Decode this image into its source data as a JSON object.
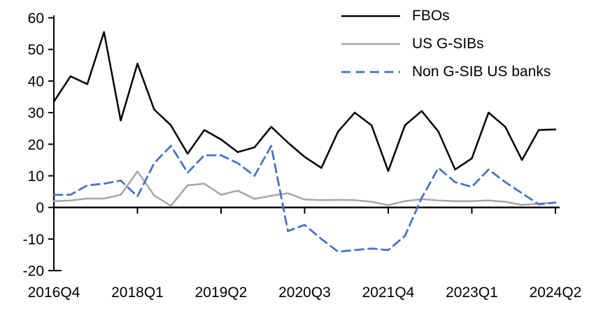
{
  "chart_data": {
    "type": "line",
    "title": "",
    "xlabel": "",
    "ylabel": "",
    "ylim": [
      -20,
      60
    ],
    "grid": false,
    "legend_position": "top-right",
    "x_categories": [
      "2016Q4",
      "2017Q1",
      "2017Q2",
      "2017Q3",
      "2017Q4",
      "2018Q1",
      "2018Q2",
      "2018Q3",
      "2018Q4",
      "2019Q1",
      "2019Q2",
      "2019Q3",
      "2019Q4",
      "2020Q1",
      "2020Q2",
      "2020Q3",
      "2020Q4",
      "2021Q1",
      "2021Q2",
      "2021Q3",
      "2021Q4",
      "2022Q1",
      "2022Q2",
      "2022Q3",
      "2022Q4",
      "2023Q1",
      "2023Q2",
      "2023Q3",
      "2023Q4",
      "2024Q1",
      "2024Q2"
    ],
    "x_tick_indices": [
      0,
      5,
      10,
      15,
      20,
      25,
      30
    ],
    "x_tick_labels": [
      "2016Q4",
      "2018Q1",
      "2019Q2",
      "2020Q3",
      "2021Q4",
      "2023Q1",
      "2024Q2"
    ],
    "y_ticks": [
      60,
      50,
      40,
      30,
      20,
      10,
      0,
      -10,
      -20
    ],
    "series": [
      {
        "name": "FBOs",
        "color": "#000000",
        "style": "solid",
        "values": [
          33.5,
          41.5,
          39,
          55.5,
          27.5,
          45.5,
          31,
          26,
          17,
          24.5,
          21.5,
          17.5,
          19,
          25.5,
          20.5,
          16,
          12.5,
          24,
          30,
          26,
          11.5,
          26,
          30.5,
          24,
          12,
          15.5,
          30,
          25.5,
          15,
          24.5,
          24.7
        ]
      },
      {
        "name": "US G-SIBs",
        "color": "#a6a6a6",
        "style": "solid",
        "values": [
          2,
          2.2,
          2.8,
          2.8,
          4,
          11.4,
          3.8,
          0.5,
          7,
          7.5,
          4,
          5.3,
          2.7,
          3.7,
          4.5,
          2.5,
          2.3,
          2.4,
          2.3,
          1.8,
          0.7,
          2,
          2.6,
          2.2,
          2,
          2,
          2.2,
          1.8,
          0.8,
          1.2,
          1.5
        ]
      },
      {
        "name": "Non G-SIB US banks",
        "color": "#4472c4",
        "style": "dashed",
        "values": [
          4,
          4,
          7,
          7.5,
          8.5,
          3.5,
          14,
          19.5,
          11,
          16.5,
          16.5,
          14,
          10,
          19.5,
          -7.5,
          -5.5,
          -10,
          -14,
          -13.5,
          -13,
          -13.5,
          -9,
          3,
          12.5,
          8,
          6.5,
          12,
          8,
          4.5,
          1,
          1.5
        ]
      }
    ]
  }
}
